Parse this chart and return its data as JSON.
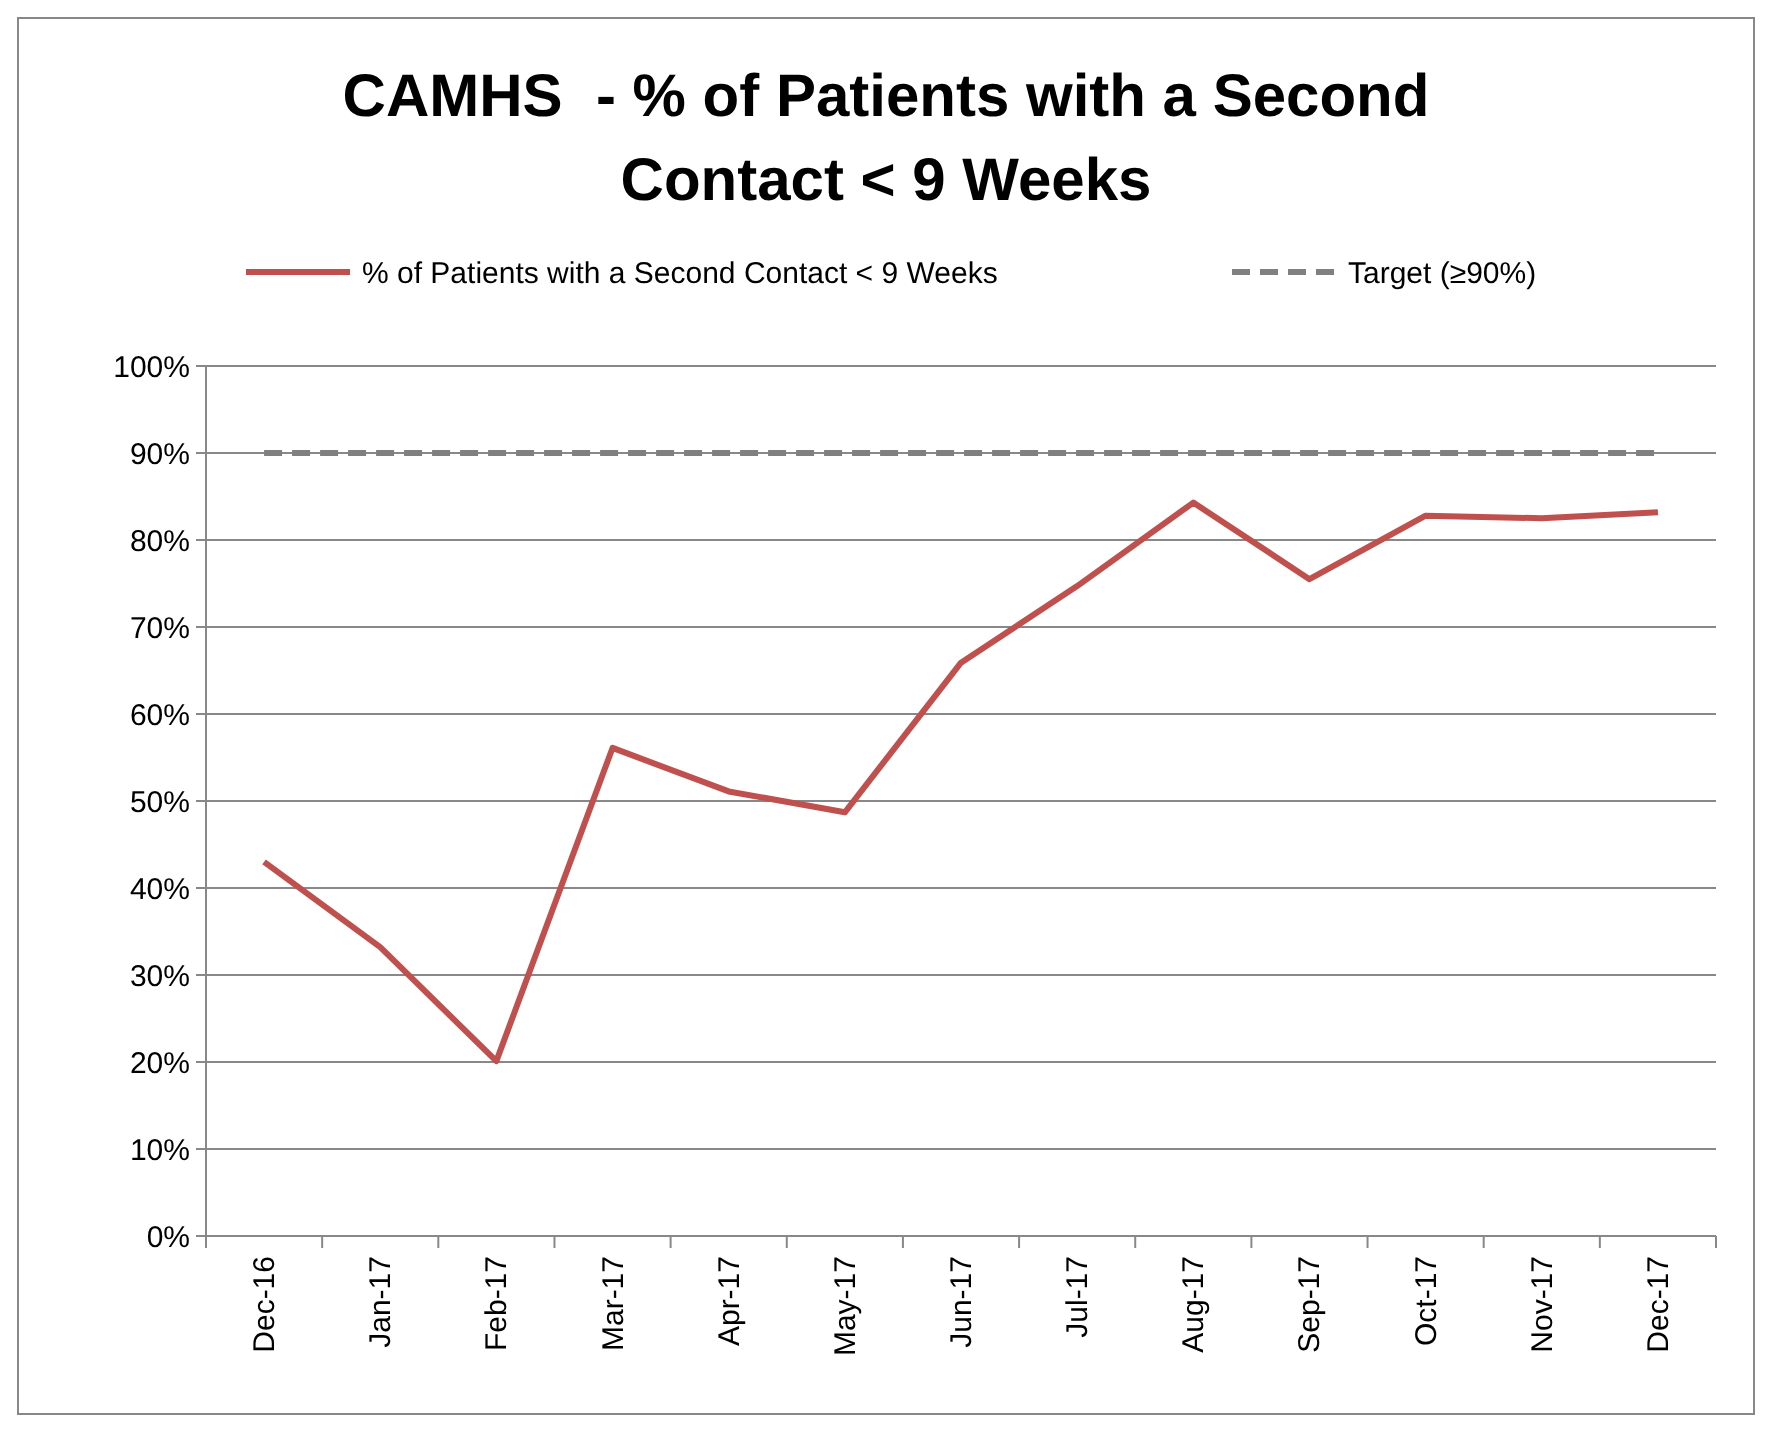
{
  "chart_data": {
    "type": "line",
    "title": "CAMHS  - % of Patients with a Second Contact < 9 Weeks",
    "categories": [
      "Dec-16",
      "Jan-17",
      "Feb-17",
      "Mar-17",
      "Apr-17",
      "May-17",
      "Jun-17",
      "Jul-17",
      "Aug-17",
      "Sep-17",
      "Oct-17",
      "Nov-17",
      "Dec-17"
    ],
    "series": [
      {
        "name": "% of Patients with a Second Contact < 9 Weeks",
        "color": "#c0504d",
        "line_style": "solid",
        "values": [
          43,
          33.2,
          20.1,
          56.1,
          51.1,
          48.7,
          65.9,
          74.7,
          84.3,
          75.5,
          82.8,
          82.5,
          83.2
        ]
      },
      {
        "name": "Target (≥90%)",
        "color": "#808080",
        "line_style": "dashed",
        "values": [
          90,
          90,
          90,
          90,
          90,
          90,
          90,
          90,
          90,
          90,
          90,
          90,
          90
        ]
      }
    ],
    "ylim": [
      0,
      100
    ],
    "yticks": [
      {
        "value": 0,
        "label": "0%"
      },
      {
        "value": 10,
        "label": "10%"
      },
      {
        "value": 20,
        "label": "20%"
      },
      {
        "value": 30,
        "label": "30%"
      },
      {
        "value": 40,
        "label": "40%"
      },
      {
        "value": 50,
        "label": "50%"
      },
      {
        "value": 60,
        "label": "60%"
      },
      {
        "value": 70,
        "label": "70%"
      },
      {
        "value": 80,
        "label": "80%"
      },
      {
        "value": 90,
        "label": "90%"
      },
      {
        "value": 100,
        "label": "100%"
      }
    ],
    "grid": "y",
    "legend": "top"
  }
}
